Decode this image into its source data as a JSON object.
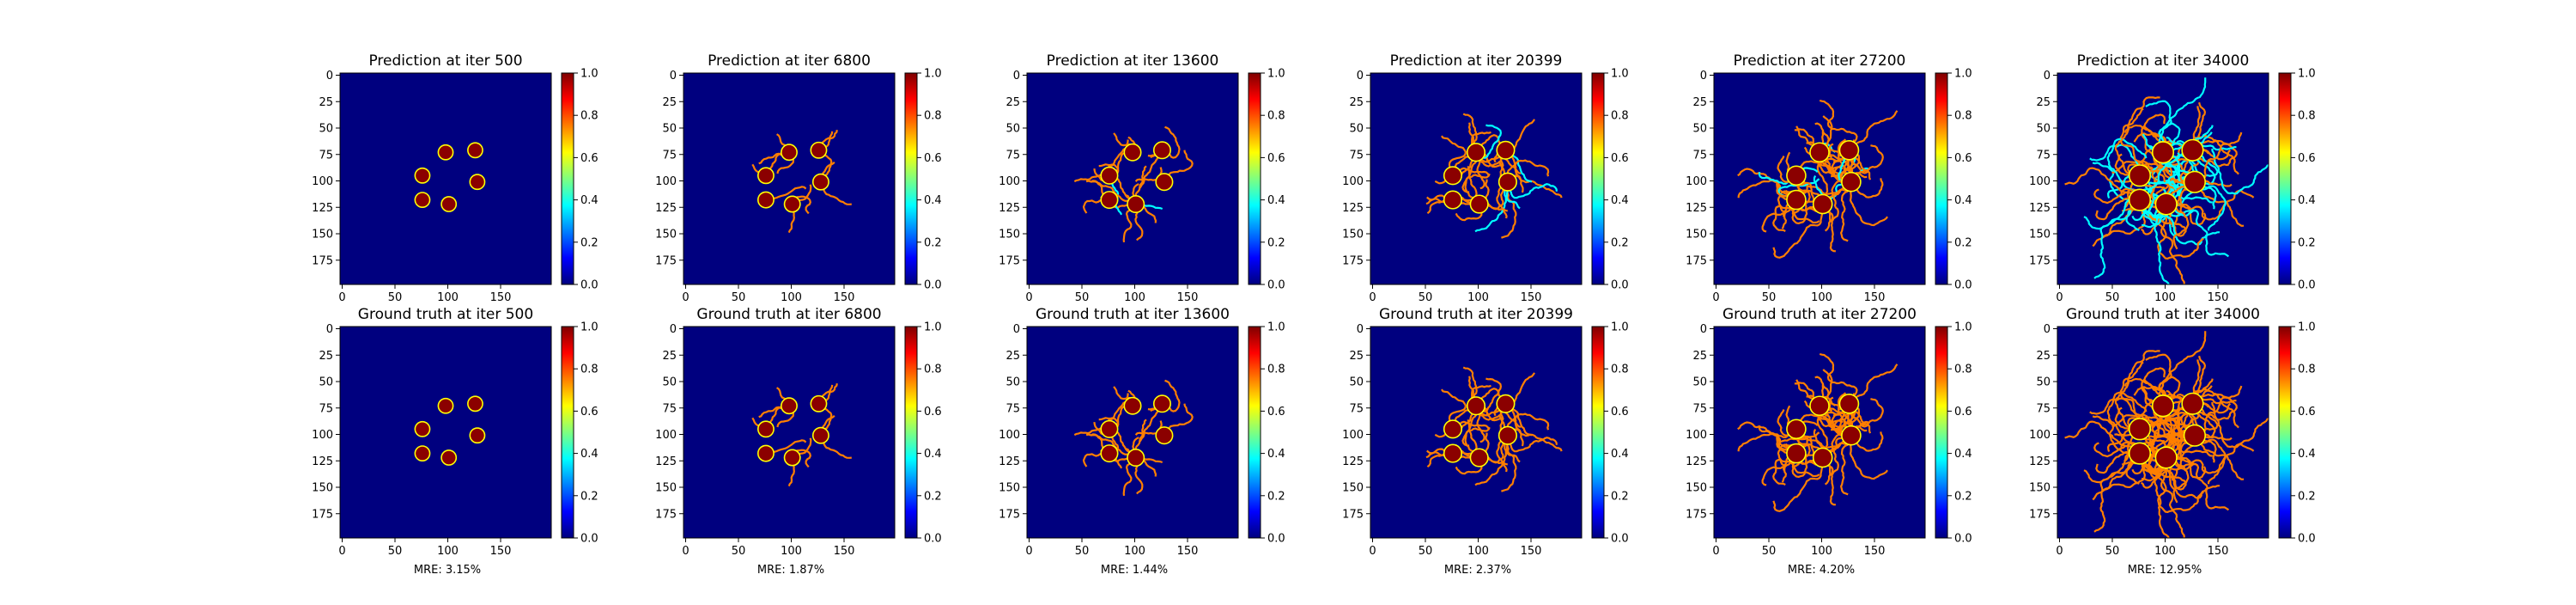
{
  "colormap": {
    "name": "jet",
    "stops": [
      "#00007f",
      "#0000ff",
      "#007fff",
      "#00ffff",
      "#7fff7f",
      "#ffff00",
      "#ff7f00",
      "#ff0000",
      "#7f0000"
    ]
  },
  "colors": {
    "background": "#00007f",
    "blob": "#8b0000",
    "blob_rim": "#ffff00",
    "branch_warm": "#ff7f00",
    "branch_cool": "#00ffff"
  },
  "chart_data": [
    {
      "type": "heatmap",
      "row": "prediction",
      "title": "Prediction at iter 500",
      "iter": 500,
      "spread": 0.0,
      "coolness": 0.0,
      "xlim": [
        0,
        200
      ],
      "ylim": [
        200,
        0
      ],
      "xticks": [
        "0",
        "50",
        "100",
        "150"
      ],
      "yticks": [
        "0",
        "25",
        "50",
        "75",
        "100",
        "125",
        "150",
        "175"
      ],
      "colorbar_ticks": [
        "0.0",
        "0.2",
        "0.4",
        "0.6",
        "0.8",
        "1.0"
      ],
      "clim": [
        0,
        1
      ]
    },
    {
      "type": "heatmap",
      "row": "prediction",
      "title": "Prediction at iter 6800",
      "iter": 6800,
      "spread": 0.15,
      "coolness": 0.05,
      "xlim": [
        0,
        200
      ],
      "ylim": [
        200,
        0
      ],
      "xticks": [
        "0",
        "50",
        "100",
        "150"
      ],
      "yticks": [
        "0",
        "25",
        "50",
        "75",
        "100",
        "125",
        "150",
        "175"
      ],
      "colorbar_ticks": [
        "0.0",
        "0.2",
        "0.4",
        "0.6",
        "0.8",
        "1.0"
      ],
      "clim": [
        0,
        1
      ]
    },
    {
      "type": "heatmap",
      "row": "prediction",
      "title": "Prediction at iter 13600",
      "iter": 13600,
      "spread": 0.3,
      "coolness": 0.08,
      "xlim": [
        0,
        200
      ],
      "ylim": [
        200,
        0
      ],
      "xticks": [
        "0",
        "50",
        "100",
        "150"
      ],
      "yticks": [
        "0",
        "25",
        "50",
        "75",
        "100",
        "125",
        "150",
        "175"
      ],
      "colorbar_ticks": [
        "0.0",
        "0.2",
        "0.4",
        "0.6",
        "0.8",
        "1.0"
      ],
      "clim": [
        0,
        1
      ]
    },
    {
      "type": "heatmap",
      "row": "prediction",
      "title": "Prediction at iter 20399",
      "iter": 20399,
      "spread": 0.45,
      "coolness": 0.1,
      "xlim": [
        0,
        200
      ],
      "ylim": [
        200,
        0
      ],
      "xticks": [
        "0",
        "50",
        "100",
        "150"
      ],
      "yticks": [
        "0",
        "25",
        "50",
        "75",
        "100",
        "125",
        "150",
        "175"
      ],
      "colorbar_ticks": [
        "0.0",
        "0.2",
        "0.4",
        "0.6",
        "0.8",
        "1.0"
      ],
      "clim": [
        0,
        1
      ]
    },
    {
      "type": "heatmap",
      "row": "prediction",
      "title": "Prediction at iter 27200",
      "iter": 27200,
      "spread": 0.65,
      "coolness": 0.2,
      "xlim": [
        0,
        200
      ],
      "ylim": [
        200,
        0
      ],
      "xticks": [
        "0",
        "50",
        "100",
        "150"
      ],
      "yticks": [
        "0",
        "25",
        "50",
        "75",
        "100",
        "125",
        "150",
        "175"
      ],
      "colorbar_ticks": [
        "0.0",
        "0.2",
        "0.4",
        "0.6",
        "0.8",
        "1.0"
      ],
      "clim": [
        0,
        1
      ]
    },
    {
      "type": "heatmap",
      "row": "prediction",
      "title": "Prediction at iter 34000",
      "iter": 34000,
      "spread": 1.0,
      "coolness": 0.5,
      "xlim": [
        0,
        200
      ],
      "ylim": [
        200,
        0
      ],
      "xticks": [
        "0",
        "50",
        "100",
        "150"
      ],
      "yticks": [
        "0",
        "25",
        "50",
        "75",
        "100",
        "125",
        "150",
        "175"
      ],
      "colorbar_ticks": [
        "0.0",
        "0.2",
        "0.4",
        "0.6",
        "0.8",
        "1.0"
      ],
      "clim": [
        0,
        1
      ]
    },
    {
      "type": "heatmap",
      "row": "ground_truth",
      "title": "Ground truth at iter 500",
      "iter": 500,
      "spread": 0.0,
      "coolness": 0.0,
      "mre": "MRE: 3.15%",
      "xlim": [
        0,
        200
      ],
      "ylim": [
        200,
        0
      ],
      "xticks": [
        "0",
        "50",
        "100",
        "150"
      ],
      "yticks": [
        "0",
        "25",
        "50",
        "75",
        "100",
        "125",
        "150",
        "175"
      ],
      "colorbar_ticks": [
        "0.0",
        "0.2",
        "0.4",
        "0.6",
        "0.8",
        "1.0"
      ],
      "clim": [
        0,
        1
      ]
    },
    {
      "type": "heatmap",
      "row": "ground_truth",
      "title": "Ground truth at iter 6800",
      "iter": 6800,
      "spread": 0.15,
      "coolness": 0.0,
      "mre": "MRE: 1.87%",
      "xlim": [
        0,
        200
      ],
      "ylim": [
        200,
        0
      ],
      "xticks": [
        "0",
        "50",
        "100",
        "150"
      ],
      "yticks": [
        "0",
        "25",
        "50",
        "75",
        "100",
        "125",
        "150",
        "175"
      ],
      "colorbar_ticks": [
        "0.0",
        "0.2",
        "0.4",
        "0.6",
        "0.8",
        "1.0"
      ],
      "clim": [
        0,
        1
      ]
    },
    {
      "type": "heatmap",
      "row": "ground_truth",
      "title": "Ground truth at iter 13600",
      "iter": 13600,
      "spread": 0.3,
      "coolness": 0.0,
      "mre": "MRE: 1.44%",
      "xlim": [
        0,
        200
      ],
      "ylim": [
        200,
        0
      ],
      "xticks": [
        "0",
        "50",
        "100",
        "150"
      ],
      "yticks": [
        "0",
        "25",
        "50",
        "75",
        "100",
        "125",
        "150",
        "175"
      ],
      "colorbar_ticks": [
        "0.0",
        "0.2",
        "0.4",
        "0.6",
        "0.8",
        "1.0"
      ],
      "clim": [
        0,
        1
      ]
    },
    {
      "type": "heatmap",
      "row": "ground_truth",
      "title": "Ground truth at iter 20399",
      "iter": 20399,
      "spread": 0.45,
      "coolness": 0.0,
      "mre": "MRE: 2.37%",
      "xlim": [
        0,
        200
      ],
      "ylim": [
        200,
        0
      ],
      "xticks": [
        "0",
        "50",
        "100",
        "150"
      ],
      "yticks": [
        "0",
        "25",
        "50",
        "75",
        "100",
        "125",
        "150",
        "175"
      ],
      "colorbar_ticks": [
        "0.0",
        "0.2",
        "0.4",
        "0.6",
        "0.8",
        "1.0"
      ],
      "clim": [
        0,
        1
      ]
    },
    {
      "type": "heatmap",
      "row": "ground_truth",
      "title": "Ground truth at iter 27200",
      "iter": 27200,
      "spread": 0.65,
      "coolness": 0.0,
      "mre": "MRE: 4.20%",
      "xlim": [
        0,
        200
      ],
      "ylim": [
        200,
        0
      ],
      "xticks": [
        "0",
        "50",
        "100",
        "150"
      ],
      "yticks": [
        "0",
        "25",
        "50",
        "75",
        "100",
        "125",
        "150",
        "175"
      ],
      "colorbar_ticks": [
        "0.0",
        "0.2",
        "0.4",
        "0.6",
        "0.8",
        "1.0"
      ],
      "clim": [
        0,
        1
      ]
    },
    {
      "type": "heatmap",
      "row": "ground_truth",
      "title": "Ground truth at iter 34000",
      "iter": 34000,
      "spread": 1.0,
      "coolness": 0.0,
      "mre": "MRE: 12.95%",
      "xlim": [
        0,
        200
      ],
      "ylim": [
        200,
        0
      ],
      "xticks": [
        "0",
        "50",
        "100",
        "150"
      ],
      "yticks": [
        "0",
        "25",
        "50",
        "75",
        "100",
        "125",
        "150",
        "175"
      ],
      "colorbar_ticks": [
        "0.0",
        "0.2",
        "0.4",
        "0.6",
        "0.8",
        "1.0"
      ],
      "clim": [
        0,
        1
      ]
    }
  ]
}
